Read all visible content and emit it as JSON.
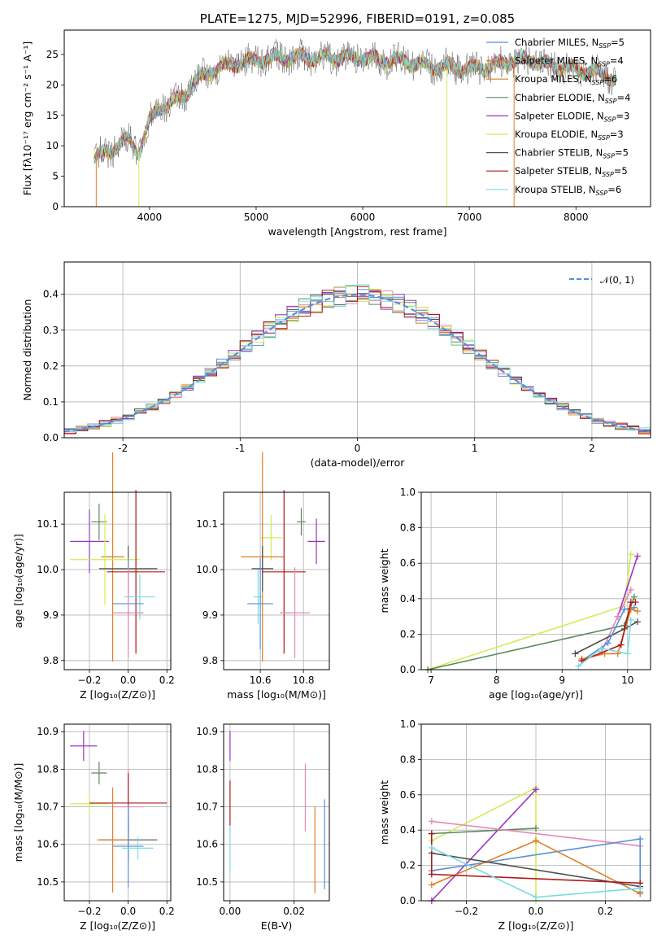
{
  "figure": {
    "title": "PLATE=1275, MJD=52996, FIBERID=0191, z=0.085"
  },
  "colors": {
    "blue": "#5b8fd9",
    "orange": "#e07d24",
    "green": "#5a8a5c",
    "pink": "#e48aba",
    "purple": "#9a37c0",
    "yellow": "#d3ec55",
    "gray": "#505050",
    "red": "#b01a1a",
    "cyan": "#78dde0",
    "grid": "#b0b0b0"
  },
  "chart_data": [
    {
      "id": "spectrum",
      "type": "line",
      "title": "PLATE=1275, MJD=52996, FIBERID=0191, z=0.085",
      "xlabel": "wavelength [Angstrom, rest frame]",
      "ylabel": "Flux [fλ10⁻¹⁷ erg cm⁻² s⁻¹ A⁻¹]",
      "xlim": [
        3200,
        8700
      ],
      "ylim": [
        0,
        29
      ],
      "xticks": [
        4000,
        5000,
        6000,
        7000,
        8000
      ],
      "yticks": [
        0,
        5,
        10,
        15,
        20,
        25
      ],
      "grid": false,
      "legend_position": "upper-right",
      "continuum": [
        [
          3480,
          8
        ],
        [
          3600,
          9
        ],
        [
          3700,
          10
        ],
        [
          3800,
          11
        ],
        [
          3900,
          9
        ],
        [
          4000,
          14
        ],
        [
          4100,
          16.5
        ],
        [
          4200,
          17
        ],
        [
          4300,
          18
        ],
        [
          4400,
          20
        ],
        [
          4500,
          21.5
        ],
        [
          4600,
          22.5
        ],
        [
          4800,
          23.5
        ],
        [
          5000,
          24
        ],
        [
          5200,
          24.5
        ],
        [
          5400,
          24.5
        ],
        [
          5600,
          24.5
        ],
        [
          5800,
          24.5
        ],
        [
          6000,
          24.5
        ],
        [
          6200,
          24
        ],
        [
          6400,
          24
        ],
        [
          6600,
          23
        ],
        [
          6800,
          23
        ],
        [
          7000,
          22.5
        ],
        [
          7200,
          23
        ],
        [
          7400,
          24
        ],
        [
          7600,
          24
        ],
        [
          7800,
          23
        ],
        [
          8000,
          22.5
        ],
        [
          8200,
          22
        ],
        [
          8380,
          21
        ]
      ],
      "series": [
        {
          "name": "Chabrier MILES, N_SSP=5",
          "label_main": "Chabrier MILES, N",
          "label_sub": "SSP",
          "label_tail": "=5",
          "color": "blue"
        },
        {
          "name": "Salpeter MILES, N_SSP=4",
          "label_main": "Salpeter MILES, N",
          "label_sub": "SSP",
          "label_tail": "=4",
          "color": "orange"
        },
        {
          "name": "Kroupa MILES, N_SSP=6",
          "label_main": "Kroupa MILES, N",
          "label_sub": "SSP",
          "label_tail": "=6",
          "color": "orange"
        },
        {
          "name": "Chabrier ELODIE, N_SSP=4",
          "label_main": "Chabrier ELODIE, N",
          "label_sub": "SSP",
          "label_tail": "=4",
          "color": "green"
        },
        {
          "name": "Salpeter ELODIE, N_SSP=3",
          "label_main": "Salpeter ELODIE, N",
          "label_sub": "SSP",
          "label_tail": "=3",
          "color": "purple"
        },
        {
          "name": "Kroupa ELODIE, N_SSP=3",
          "label_main": "Kroupa ELODIE, N",
          "label_sub": "SSP",
          "label_tail": "=3",
          "color": "yellow"
        },
        {
          "name": "Chabrier STELIB, N_SSP=5",
          "label_main": "Chabrier STELIB, N",
          "label_sub": "SSP",
          "label_tail": "=5",
          "color": "gray"
        },
        {
          "name": "Salpeter STELIB, N_SSP=5",
          "label_main": "Salpeter STELIB, N",
          "label_sub": "SSP",
          "label_tail": "=5",
          "color": "red"
        },
        {
          "name": "Kroupa STELIB, N_SSP=6",
          "label_main": "Kroupa STELIB, N",
          "label_sub": "SSP",
          "label_tail": "=6",
          "color": "cyan"
        }
      ]
    },
    {
      "id": "residuals",
      "type": "histogram",
      "xlabel": "(data-model)/error",
      "ylabel": "Normed distribution",
      "xlim": [
        -2.5,
        2.5
      ],
      "ylim": [
        0,
        0.49
      ],
      "xticks": [
        -2,
        -1,
        0,
        1,
        2
      ],
      "yticks": [
        0.0,
        0.1,
        0.2,
        0.3,
        0.4
      ],
      "grid": true,
      "legend_position": "upper-right",
      "reference_curve": {
        "name": "𝒩(0, 1)",
        "color": "blue",
        "style": "dashed"
      },
      "bins": {
        "start": -2.5,
        "width": 0.1
      },
      "series_colors": [
        "blue",
        "orange",
        "green",
        "pink",
        "purple",
        "yellow",
        "gray",
        "red",
        "cyan"
      ]
    },
    {
      "id": "age-vs-Z",
      "type": "errorbar",
      "xlabel": "Z [log₁₀(Z/Z⊙)]",
      "ylabel": "age  [log₁₀(age/yr)]",
      "xlim": [
        -0.33,
        0.22
      ],
      "ylim": [
        9.78,
        10.17
      ],
      "xticks": [
        -0.2,
        0.0,
        0.2
      ],
      "xticklabels": [
        "−0.2",
        "0.0",
        "0.2"
      ],
      "yticks": [
        9.8,
        9.9,
        10.0,
        10.1
      ],
      "yticklabels": [
        "9.8",
        "9.9",
        "10.0",
        "10.1"
      ],
      "grid": true,
      "points": [
        {
          "color": "green",
          "x": -0.15,
          "xerr": 0.04,
          "y": 10.105,
          "yerr": 0.04
        },
        {
          "color": "purple",
          "x": -0.2,
          "xerr": 0.1,
          "y": 10.062,
          "yerr": 0.07
        },
        {
          "color": "orange",
          "x": -0.08,
          "xerr": 0.06,
          "y": 10.028,
          "yerr": 0.23
        },
        {
          "color": "yellow",
          "x": -0.12,
          "xerr": 0.18,
          "y": 10.022,
          "yerr": 0.1
        },
        {
          "color": "gray",
          "x": 0.0,
          "xerr": 0.15,
          "y": 10.002,
          "yerr": 0.05
        },
        {
          "color": "red",
          "x": 0.04,
          "xerr": 0.15,
          "y": 9.995,
          "yerr": 0.18
        },
        {
          "color": "cyan",
          "x": 0.06,
          "xerr": 0.08,
          "y": 9.94,
          "yerr": 0.05
        },
        {
          "color": "blue",
          "x": 0.0,
          "xerr": 0.08,
          "y": 9.925,
          "yerr": 0.1
        },
        {
          "color": "pink",
          "x": 0.0,
          "xerr": 0.08,
          "y": 9.905,
          "yerr": 0.1
        }
      ]
    },
    {
      "id": "age-vs-mass",
      "type": "errorbar",
      "xlabel": "mass [log₁₀(M/M⊙)]",
      "ylabel": "",
      "xlim": [
        10.43,
        10.92
      ],
      "ylim": [
        9.78,
        10.17
      ],
      "xticks": [
        10.6,
        10.8
      ],
      "xticklabels": [
        "10.6",
        "10.8"
      ],
      "yticks": [
        9.8,
        9.9,
        10.0,
        10.1
      ],
      "yticklabels": [
        "9.8",
        "9.9",
        "10.0",
        "10.1"
      ],
      "grid": true,
      "points": [
        {
          "color": "green",
          "x": 10.79,
          "xerr": 0.02,
          "y": 10.105,
          "yerr": 0.03
        },
        {
          "color": "purple",
          "x": 10.86,
          "xerr": 0.04,
          "y": 10.062,
          "yerr": 0.05
        },
        {
          "color": "yellow",
          "x": 10.65,
          "xerr": 0.05,
          "y": 10.07,
          "yerr": 0.05
        },
        {
          "color": "orange",
          "x": 10.61,
          "xerr": 0.1,
          "y": 10.028,
          "yerr": 0.23
        },
        {
          "color": "gray",
          "x": 10.61,
          "xerr": 0.05,
          "y": 10.002,
          "yerr": 0.05
        },
        {
          "color": "red",
          "x": 10.71,
          "xerr": 0.1,
          "y": 9.995,
          "yerr": 0.18
        },
        {
          "color": "cyan",
          "x": 10.59,
          "xerr": 0.02,
          "y": 9.94,
          "yerr": 0.06
        },
        {
          "color": "blue",
          "x": 10.6,
          "xerr": 0.06,
          "y": 9.925,
          "yerr": 0.1
        },
        {
          "color": "pink",
          "x": 10.76,
          "xerr": 0.07,
          "y": 9.905,
          "yerr": 0.1
        }
      ]
    },
    {
      "id": "massweight-vs-age",
      "type": "line",
      "xlabel": "age  [log₁₀(age/yr)]",
      "ylabel": "mass weight",
      "xlim": [
        6.85,
        10.35
      ],
      "ylim": [
        0,
        1.0
      ],
      "xticks": [
        7,
        8,
        9,
        10
      ],
      "xticklabels": [
        "7",
        "8",
        "9",
        "10"
      ],
      "yticks": [
        0.0,
        0.2,
        0.4,
        0.6,
        0.8,
        1.0
      ],
      "yticklabels": [
        "0.0",
        "0.2",
        "0.4",
        "0.6",
        "0.8",
        "1.0"
      ],
      "grid": true,
      "series": [
        {
          "color": "yellow",
          "points": [
            [
              6.95,
              0.0
            ],
            [
              9.95,
              0.36
            ],
            [
              10.05,
              0.65
            ]
          ]
        },
        {
          "color": "green",
          "points": [
            [
              6.95,
              0.0
            ],
            [
              9.95,
              0.25
            ],
            [
              10.1,
              0.41
            ]
          ]
        },
        {
          "color": "purple",
          "points": [
            [
              9.85,
              0.3
            ],
            [
              10.15,
              0.64
            ]
          ]
        },
        {
          "color": "pink",
          "points": [
            [
              9.6,
              0.1
            ],
            [
              9.85,
              0.3
            ],
            [
              10.05,
              0.45
            ]
          ]
        },
        {
          "color": "gray",
          "points": [
            [
              9.2,
              0.09
            ],
            [
              9.95,
              0.23
            ],
            [
              10.15,
              0.27
            ]
          ]
        },
        {
          "color": "blue",
          "points": [
            [
              9.3,
              0.05
            ],
            [
              9.7,
              0.15
            ],
            [
              9.95,
              0.34
            ],
            [
              10.1,
              0.35
            ]
          ]
        },
        {
          "color": "orange",
          "points": [
            [
              9.3,
              0.06
            ],
            [
              9.65,
              0.09
            ],
            [
              9.85,
              0.09
            ],
            [
              10.05,
              0.34
            ],
            [
              10.15,
              0.33
            ]
          ]
        },
        {
          "color": "red",
          "points": [
            [
              9.3,
              0.05
            ],
            [
              9.9,
              0.14
            ],
            [
              10.05,
              0.38
            ],
            [
              10.12,
              0.38
            ]
          ]
        },
        {
          "color": "cyan",
          "points": [
            [
              9.25,
              0.02
            ],
            [
              9.6,
              0.12
            ],
            [
              10.0,
              0.09
            ],
            [
              10.05,
              0.28
            ]
          ]
        }
      ]
    },
    {
      "id": "mass-vs-Z",
      "type": "errorbar",
      "xlabel": "Z [log₁₀(Z/Z⊙)]",
      "ylabel": "mass [log₁₀(M/M⊙)]",
      "xlim": [
        -0.33,
        0.22
      ],
      "ylim": [
        10.45,
        10.92
      ],
      "xticks": [
        -0.2,
        0.0,
        0.2
      ],
      "xticklabels": [
        "−0.2",
        "0.0",
        "0.2"
      ],
      "yticks": [
        10.5,
        10.6,
        10.7,
        10.8,
        10.9
      ],
      "yticklabels": [
        "10.5",
        "10.6",
        "10.7",
        "10.8",
        "10.9"
      ],
      "grid": true,
      "points": [
        {
          "color": "purple",
          "x": -0.23,
          "xerr": 0.07,
          "y": 10.862,
          "yerr": 0.04
        },
        {
          "color": "green",
          "x": -0.15,
          "xerr": 0.04,
          "y": 10.79,
          "yerr": 0.03
        },
        {
          "color": "pink",
          "x": 0.0,
          "xerr": 0.08,
          "y": 10.7,
          "yerr": 0.1
        },
        {
          "color": "yellow",
          "x": -0.2,
          "xerr": 0.1,
          "y": 10.708,
          "yerr": 0.03
        },
        {
          "color": "red",
          "x": 0.0,
          "xerr": 0.2,
          "y": 10.71,
          "yerr": 0.08
        },
        {
          "color": "gray",
          "x": 0.0,
          "xerr": 0.15,
          "y": 10.612,
          "yerr": 0.06
        },
        {
          "color": "blue",
          "x": 0.0,
          "xerr": 0.08,
          "y": 10.595,
          "yerr": 0.11
        },
        {
          "color": "cyan",
          "x": 0.05,
          "xerr": 0.08,
          "y": 10.59,
          "yerr": 0.03
        },
        {
          "color": "orange",
          "x": -0.08,
          "xerr": 0.08,
          "y": 10.612,
          "yerr": 0.14
        }
      ]
    },
    {
      "id": "mass-vs-ebv",
      "type": "errorbar",
      "xlabel": "E(B-V)",
      "ylabel": "",
      "xlim": [
        -0.002,
        0.031
      ],
      "ylim": [
        10.45,
        10.92
      ],
      "xticks": [
        0.0,
        0.02
      ],
      "xticklabels": [
        "0.00",
        "0.02"
      ],
      "yticks": [
        10.5,
        10.6,
        10.7,
        10.8,
        10.9
      ],
      "yticklabels": [
        "10.5",
        "10.6",
        "10.7",
        "10.8",
        "10.9"
      ],
      "grid": true,
      "points": [
        {
          "color": "purple",
          "x": 0.0,
          "xerr": 0.0,
          "y": 10.862,
          "yerr": 0.04
        },
        {
          "color": "red",
          "x": 0.0,
          "xerr": 0.0,
          "y": 10.71,
          "yerr": 0.06
        },
        {
          "color": "cyan",
          "x": 0.0,
          "xerr": 0.0,
          "y": 10.59,
          "yerr": 0.06
        },
        {
          "color": "pink",
          "x": 0.0235,
          "xerr": 0.0,
          "y": 10.725,
          "yerr": 0.09
        },
        {
          "color": "orange",
          "x": 0.0265,
          "xerr": 0.0,
          "y": 10.585,
          "yerr": 0.115
        },
        {
          "color": "blue",
          "x": 0.0295,
          "xerr": 0.0,
          "y": 10.6,
          "yerr": 0.12
        }
      ]
    },
    {
      "id": "massweight-vs-Z",
      "type": "line",
      "xlabel": "Z [log₁₀(Z/Z⊙)]",
      "ylabel": "mass weight",
      "xlim": [
        -0.33,
        0.33
      ],
      "ylim": [
        0,
        1.0
      ],
      "xticks": [
        -0.2,
        0.0,
        0.2
      ],
      "xticklabels": [
        "−0.2",
        "0.0",
        "0.2"
      ],
      "yticks": [
        0.0,
        0.2,
        0.4,
        0.6,
        0.8,
        1.0
      ],
      "yticklabels": [
        "0.0",
        "0.2",
        "0.4",
        "0.6",
        "0.8",
        "1.0"
      ],
      "grid": true,
      "series": [
        {
          "color": "yellow",
          "points": [
            [
              -0.3,
              0.34
            ],
            [
              0.0,
              0.64
            ],
            [
              0.0,
              0.0
            ]
          ]
        },
        {
          "color": "purple",
          "points": [
            [
              -0.3,
              0.0
            ],
            [
              0.0,
              0.63
            ]
          ]
        },
        {
          "color": "green",
          "points": [
            [
              -0.3,
              0.38
            ],
            [
              0.0,
              0.41
            ]
          ]
        },
        {
          "color": "pink",
          "points": [
            [
              -0.3,
              0.45
            ],
            [
              0.3,
              0.31
            ]
          ]
        },
        {
          "color": "blue",
          "points": [
            [
              -0.3,
              0.17
            ],
            [
              0.3,
              0.35
            ],
            [
              0.3,
              0.05
            ]
          ]
        },
        {
          "color": "orange",
          "points": [
            [
              -0.3,
              0.09
            ],
            [
              0.0,
              0.34
            ],
            [
              0.3,
              0.04
            ]
          ]
        },
        {
          "color": "gray",
          "points": [
            [
              -0.3,
              0.27
            ],
            [
              0.3,
              0.08
            ]
          ]
        },
        {
          "color": "red",
          "points": [
            [
              -0.3,
              0.38
            ],
            [
              -0.3,
              0.15
            ],
            [
              0.3,
              0.1
            ]
          ]
        },
        {
          "color": "cyan",
          "points": [
            [
              -0.3,
              0.3
            ],
            [
              0.0,
              0.02
            ],
            [
              0.3,
              0.07
            ]
          ]
        }
      ]
    }
  ]
}
